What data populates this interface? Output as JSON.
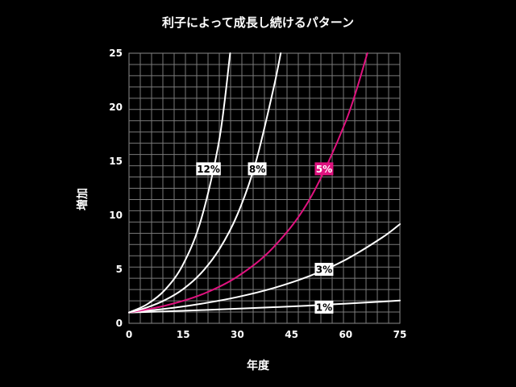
{
  "chart_data": {
    "type": "line",
    "title": "利子によって成長し続けるパターン",
    "xlabel": "年度",
    "ylabel": "増加",
    "xlim": [
      0,
      75
    ],
    "ylim": [
      0,
      25
    ],
    "x_ticks": [
      "0",
      "15",
      "30",
      "45",
      "60",
      "75"
    ],
    "y_ticks": [
      "0",
      "5",
      "10",
      "15",
      "20",
      "25"
    ],
    "grid": true,
    "highlight_color": "#e0127f",
    "line_color": "#ffffff",
    "series": [
      {
        "name": "1%",
        "highlight": false,
        "x": [
          0,
          10,
          20,
          30,
          40,
          50,
          60,
          70,
          75
        ],
        "y": [
          1,
          1.1,
          1.22,
          1.35,
          1.49,
          1.64,
          1.82,
          2.01,
          2.11
        ]
      },
      {
        "name": "3%",
        "highlight": false,
        "x": [
          0,
          10,
          20,
          30,
          40,
          50,
          60,
          70,
          75
        ],
        "y": [
          1,
          1.34,
          1.81,
          2.43,
          3.26,
          4.38,
          5.89,
          7.92,
          9.18
        ]
      },
      {
        "name": "5%",
        "highlight": true,
        "x": [
          0,
          10,
          20,
          30,
          40,
          50,
          60,
          66
        ],
        "y": [
          1,
          1.63,
          2.65,
          4.32,
          7.04,
          11.47,
          18.68,
          25.0
        ]
      },
      {
        "name": "8%",
        "highlight": false,
        "x": [
          0,
          5,
          10,
          15,
          20,
          25,
          30,
          35,
          40,
          42
        ],
        "y": [
          1,
          1.47,
          2.16,
          3.17,
          4.66,
          6.85,
          10.06,
          14.79,
          21.72,
          25.0
        ]
      },
      {
        "name": "12%",
        "highlight": false,
        "x": [
          0,
          5,
          10,
          15,
          20,
          25,
          28
        ],
        "y": [
          1,
          1.76,
          3.11,
          5.47,
          9.65,
          17.0,
          25.0
        ]
      }
    ],
    "series_labels": [
      {
        "text": "12%",
        "x": 22,
        "y": 14.3
      },
      {
        "text": "8%",
        "x": 35.5,
        "y": 14.3
      },
      {
        "text": "5%",
        "x": 54,
        "y": 14.3
      },
      {
        "text": "3%",
        "x": 54,
        "y": 5.0
      },
      {
        "text": "1%",
        "x": 54,
        "y": 1.5
      }
    ]
  }
}
